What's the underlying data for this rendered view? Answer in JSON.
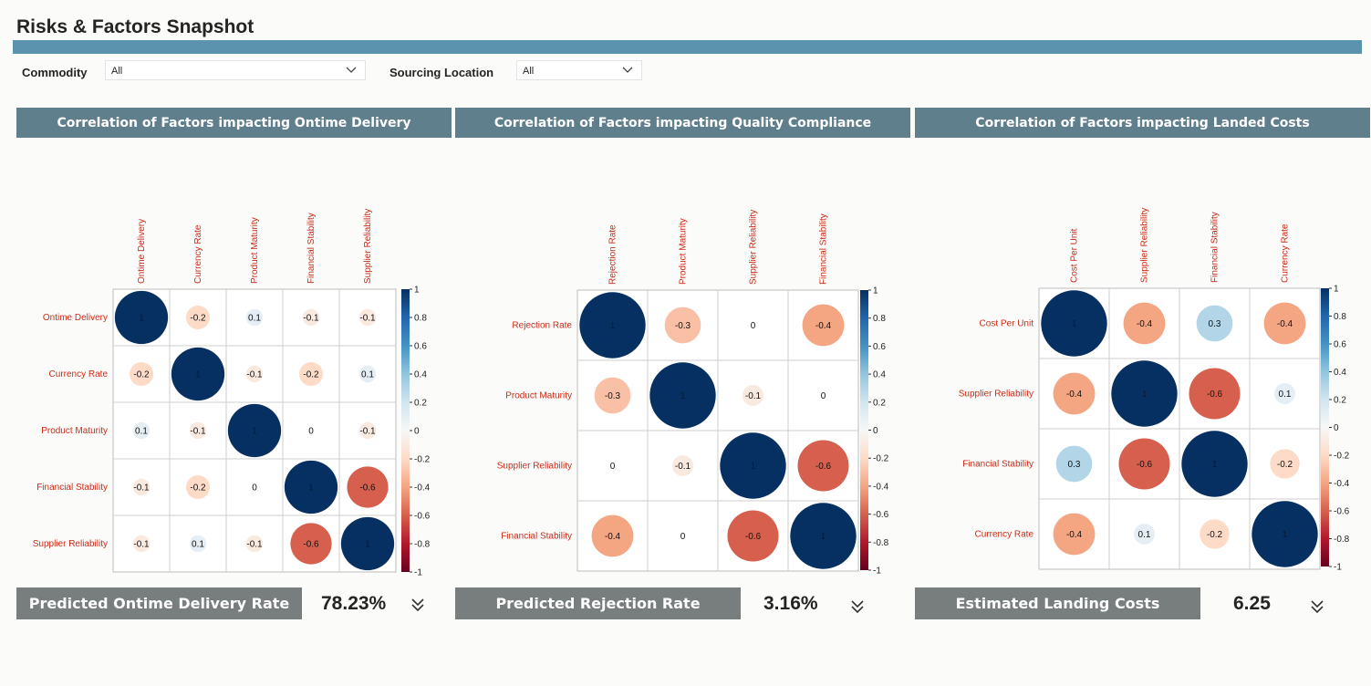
{
  "page": {
    "title": "Risks & Factors Snapshot"
  },
  "filters": {
    "commodity": {
      "label": "Commodity",
      "value": "All"
    },
    "sourcing_location": {
      "label": "Sourcing Location",
      "value": "All"
    }
  },
  "panels": [
    {
      "header": "Correlation of Factors impacting Ontime Delivery",
      "prediction_label": "Predicted Ontime Delivery Rate",
      "prediction_value": "78.23%"
    },
    {
      "header": "Correlation of Factors impacting Quality Compliance",
      "prediction_label": "Predicted Rejection Rate",
      "prediction_value": "3.16%"
    },
    {
      "header": "Correlation of Factors impacting Landed Costs",
      "prediction_label": "Estimated Landing Costs",
      "prediction_value": "6.25"
    }
  ],
  "colors": {
    "title_bar": "#5b93ae",
    "panel_header": "#5f7f8c",
    "prediction_bar": "#787d7e",
    "axis_label": "#cc2a16",
    "positive": "#053061",
    "negative": "#67001f"
  },
  "icons": {
    "dropdown": "chevron-down-icon",
    "expand": "double-chevron-down-icon"
  },
  "chart_data": [
    {
      "type": "heatmap",
      "variables": [
        "Ontime Delivery",
        "Currency Rate",
        "Product Maturity",
        "Financial Stability",
        "Supplier Reliability"
      ],
      "matrix": [
        [
          1,
          -0.2,
          0.1,
          -0.1,
          -0.1
        ],
        [
          -0.2,
          1,
          -0.1,
          -0.2,
          0.1
        ],
        [
          0.1,
          -0.1,
          1,
          0,
          -0.1
        ],
        [
          -0.1,
          -0.2,
          0,
          1,
          -0.6
        ],
        [
          -0.1,
          0.1,
          -0.1,
          -0.6,
          1
        ]
      ],
      "colorbar_ticks": [
        "1",
        "0.8",
        "0.6",
        "0.4",
        "0.2",
        "0",
        "-0.2",
        "-0.4",
        "-0.6",
        "-0.8",
        "-1"
      ],
      "range": [
        -1,
        1
      ]
    },
    {
      "type": "heatmap",
      "variables": [
        "Rejection Rate",
        "Product Maturity",
        "Supplier Reliability",
        "Financial Stability"
      ],
      "matrix": [
        [
          1,
          -0.3,
          0,
          -0.4
        ],
        [
          -0.3,
          1,
          -0.1,
          0
        ],
        [
          0,
          -0.1,
          1,
          -0.6
        ],
        [
          -0.4,
          0,
          -0.6,
          1
        ]
      ],
      "colorbar_ticks": [
        "1",
        "0.8",
        "0.6",
        "0.4",
        "0.2",
        "0",
        "-0.2",
        "-0.4",
        "-0.6",
        "-0.8",
        "-1"
      ],
      "range": [
        -1,
        1
      ]
    },
    {
      "type": "heatmap",
      "variables": [
        "Cost Per Unit",
        "Supplier Reliability",
        "Financial Stability",
        "Currency Rate"
      ],
      "matrix": [
        [
          1,
          -0.4,
          0.3,
          -0.4
        ],
        [
          -0.4,
          1,
          -0.6,
          0.1
        ],
        [
          0.3,
          -0.6,
          1,
          -0.2
        ],
        [
          -0.4,
          0.1,
          -0.2,
          1
        ]
      ],
      "colorbar_ticks": [
        "1",
        "0.8",
        "0.6",
        "0.4",
        "0.2",
        "0",
        "-0.2",
        "-0.4",
        "-0.6",
        "-0.8",
        "-1"
      ],
      "range": [
        -1,
        1
      ]
    }
  ]
}
